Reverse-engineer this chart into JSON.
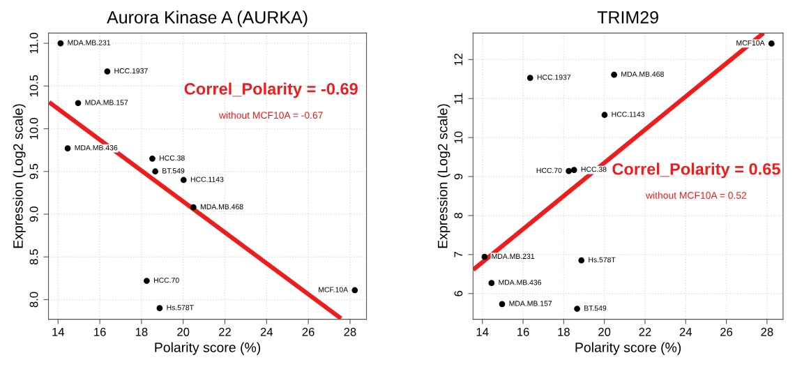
{
  "chart_data": [
    {
      "type": "scatter",
      "title": "Aurora Kinase A (AURKA)",
      "xlabel": "Polarity score (%)",
      "ylabel": "Expression (Log2 scale)",
      "xlim": [
        13.54,
        28.79
      ],
      "ylim": [
        7.77,
        11.12
      ],
      "xticks": [
        14,
        16,
        18,
        20,
        22,
        24,
        26,
        28
      ],
      "yticks": [
        {
          "value": 8,
          "label": "8.0"
        },
        {
          "value": 8.5,
          "label": "8.5"
        },
        {
          "value": 9,
          "label": "9.0"
        },
        {
          "value": 9.5,
          "label": "9.5"
        },
        {
          "value": 10,
          "label": "10.0"
        },
        {
          "value": 10.5,
          "label": "10.5"
        },
        {
          "value": 11,
          "label": "11.0"
        }
      ],
      "grid": true,
      "series": [
        {
          "marker": "circle",
          "color": "#000000",
          "x": [
            14.12,
            16.36,
            14.96,
            14.46,
            18.52,
            18.66,
            20.02,
            20.49,
            18.25,
            28.23,
            18.87
          ],
          "values": [
            11.0,
            10.67,
            10.3,
            9.77,
            9.65,
            9.5,
            9.4,
            9.08,
            8.22,
            8.11,
            7.9
          ]
        },
        {
          "type": "line",
          "color": "#ee1c1c",
          "x": [
            13.57,
            27.57
          ],
          "values": [
            10.31,
            7.78
          ]
        }
      ],
      "annotations": [
        "Correl_Polarity = -0.69",
        "without MCF10A = -0.67",
        {
          "text": "MDA.MB.231",
          "x": 14.12,
          "y": 11.0
        },
        {
          "text": "HCC.1937",
          "x": 16.36,
          "y": 10.67
        },
        {
          "text": "MDA.MB.157",
          "x": 14.96,
          "y": 10.3
        },
        {
          "text": "MDA.MB.436",
          "x": 14.46,
          "y": 9.77
        },
        {
          "text": "HCC.38",
          "x": 18.52,
          "y": 9.65
        },
        {
          "text": "BT.549",
          "x": 18.66,
          "y": 9.5
        },
        {
          "text": "HCC.1143",
          "x": 20.02,
          "y": 9.4
        },
        {
          "text": "MDA.MB.468",
          "x": 20.49,
          "y": 9.08
        },
        {
          "text": "HCC.70",
          "x": 18.25,
          "y": 8.22
        },
        {
          "text": "MCF.10A",
          "x": 28.23,
          "y": 8.11
        },
        {
          "text": "Hs.578T",
          "x": 18.87,
          "y": 7.9
        }
      ]
    },
    {
      "type": "scatter",
      "title": "TRIM29",
      "xlabel": "Polarity score (%)",
      "ylabel": "Expression (Log2 scale)",
      "xlim": [
        13.54,
        28.79
      ],
      "ylim": [
        5.34,
        12.68
      ],
      "xticks": [
        14,
        16,
        18,
        20,
        22,
        24,
        26,
        28
      ],
      "yticks": [
        6,
        7,
        8,
        9,
        10,
        11,
        12
      ],
      "grid": true,
      "series": [
        {
          "marker": "circle",
          "color": "#000000",
          "x": [
            28.22,
            16.35,
            20.48,
            20.01,
            18.25,
            18.51,
            14.11,
            18.87,
            14.45,
            14.97,
            18.66
          ],
          "values": [
            12.41,
            11.53,
            11.61,
            10.58,
            9.14,
            9.17,
            6.94,
            6.85,
            6.27,
            5.73,
            5.61
          ]
        },
        {
          "type": "line",
          "color": "#ee1c1c",
          "x": [
            13.55,
            27.83
          ],
          "values": [
            6.61,
            12.68
          ]
        }
      ],
      "annotations": [
        "Correl_Polarity = 0.65",
        "without MCF10A = 0.52",
        {
          "text": "MCF10A",
          "x": 28.22,
          "y": 12.41
        },
        {
          "text": "HCC.1937",
          "x": 16.35,
          "y": 11.53
        },
        {
          "text": "MDA.MB.468",
          "x": 20.48,
          "y": 11.61
        },
        {
          "text": "HCC.1143",
          "x": 20.01,
          "y": 10.58
        },
        {
          "text": "HCC.70",
          "x": 18.25,
          "y": 9.14
        },
        {
          "text": "HCC.38",
          "x": 18.51,
          "y": 9.17
        },
        {
          "text": "MDA.MB.231",
          "x": 14.11,
          "y": 6.94
        },
        {
          "text": "Hs.578T",
          "x": 18.87,
          "y": 6.85
        },
        {
          "text": "MDA.MB.436",
          "x": 14.45,
          "y": 6.27
        },
        {
          "text": "MDA.MB.157",
          "x": 14.97,
          "y": 5.73
        },
        {
          "text": "BT.549",
          "x": 18.66,
          "y": 5.61
        }
      ]
    }
  ]
}
